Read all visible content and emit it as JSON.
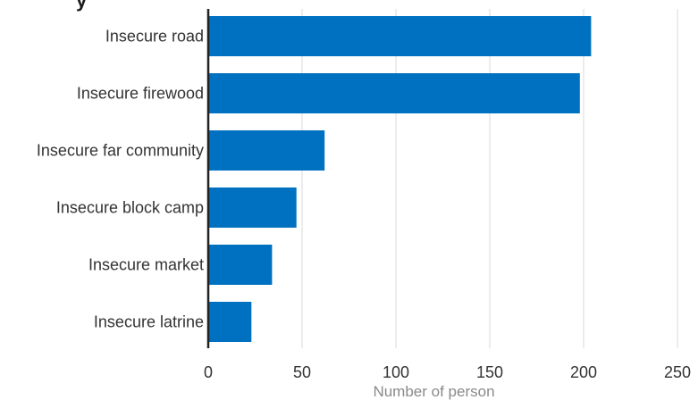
{
  "chart_data": {
    "type": "bar",
    "orientation": "horizontal",
    "title_fragment": "y",
    "categories": [
      "Insecure road",
      "Insecure firewood",
      "Insecure far community",
      "Insecure block camp",
      "Insecure market",
      "Insecure latrine"
    ],
    "values": [
      204,
      198,
      62,
      47,
      34,
      23
    ],
    "xlabel": "Number of person",
    "ylabel": "",
    "xlim": [
      0,
      250
    ],
    "xticks": [
      "0",
      "50",
      "100",
      "150",
      "200",
      "250"
    ],
    "grid": "vertical",
    "bar_color": "#0070c0"
  }
}
